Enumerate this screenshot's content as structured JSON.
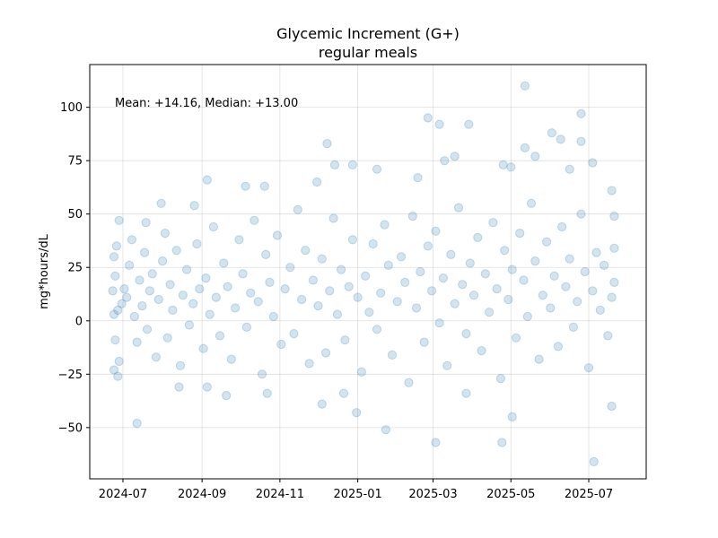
{
  "chart_data": {
    "type": "scatter",
    "title": "Glycemic Increment (G+)",
    "subtitle": "regular meals",
    "xlabel": "",
    "ylabel": "mg*hours/dL",
    "annotation": "Mean: +14.16, Median: +13.00",
    "x_axis_type": "date",
    "xlim": [
      "2024-06-05",
      "2025-08-15"
    ],
    "ylim": [
      -74,
      120
    ],
    "x_ticks": [
      "2024-07-01",
      "2024-09-01",
      "2024-11-01",
      "2025-01-01",
      "2025-03-01",
      "2025-05-01",
      "2025-07-01"
    ],
    "x_tick_labels": [
      "2024-07",
      "2024-09",
      "2024-11",
      "2025-01",
      "2025-03",
      "2025-05",
      "2025-07"
    ],
    "y_ticks": [
      -50,
      -25,
      0,
      25,
      50,
      75,
      100
    ],
    "y_tick_labels": [
      "−50",
      "−25",
      "0",
      "25",
      "50",
      "75",
      "100"
    ],
    "grid": true,
    "point_color": "#1f77b4",
    "point_alpha": 0.2,
    "legend": "none",
    "series": [
      {
        "name": "",
        "points": [
          {
            "x": "2024-06-27",
            "y": -26
          },
          {
            "x": "2024-06-24",
            "y": -23
          },
          {
            "x": "2024-06-28",
            "y": 47
          },
          {
            "x": "2024-07-12",
            "y": -48
          },
          {
            "x": "2024-07-19",
            "y": 46
          },
          {
            "x": "2024-07-31",
            "y": 55
          },
          {
            "x": "2024-08-14",
            "y": -31
          },
          {
            "x": "2024-08-26",
            "y": 54
          },
          {
            "x": "2024-09-05",
            "y": -31
          },
          {
            "x": "2024-09-05",
            "y": 66
          },
          {
            "x": "2024-09-20",
            "y": -35
          },
          {
            "x": "2024-10-05",
            "y": 63
          },
          {
            "x": "2024-10-20",
            "y": 63
          },
          {
            "x": "2024-10-22",
            "y": -34
          },
          {
            "x": "2024-11-30",
            "y": 65
          },
          {
            "x": "2024-12-04",
            "y": -39
          },
          {
            "x": "2024-12-08",
            "y": 83
          },
          {
            "x": "2024-12-14",
            "y": 73
          },
          {
            "x": "2024-12-28",
            "y": 73
          },
          {
            "x": "2024-12-21",
            "y": -34
          },
          {
            "x": "2024-12-31",
            "y": -43
          },
          {
            "x": "2025-01-16",
            "y": 71
          },
          {
            "x": "2025-01-23",
            "y": -51
          },
          {
            "x": "2025-02-17",
            "y": 67
          },
          {
            "x": "2025-02-25",
            "y": 95
          },
          {
            "x": "2025-03-06",
            "y": 92
          },
          {
            "x": "2025-03-03",
            "y": -57
          },
          {
            "x": "2025-03-10",
            "y": 75
          },
          {
            "x": "2025-03-18",
            "y": 77
          },
          {
            "x": "2025-03-29",
            "y": 92
          },
          {
            "x": "2025-03-27",
            "y": -34
          },
          {
            "x": "2025-04-25",
            "y": 73
          },
          {
            "x": "2025-04-24",
            "y": -57
          },
          {
            "x": "2025-05-01",
            "y": 72
          },
          {
            "x": "2025-05-02",
            "y": -45
          },
          {
            "x": "2025-05-12",
            "y": 110
          },
          {
            "x": "2025-05-12",
            "y": 81
          },
          {
            "x": "2025-05-20",
            "y": 77
          },
          {
            "x": "2025-06-02",
            "y": 88
          },
          {
            "x": "2025-06-09",
            "y": 85
          },
          {
            "x": "2025-06-16",
            "y": 71
          },
          {
            "x": "2025-06-25",
            "y": 97
          },
          {
            "x": "2025-06-25",
            "y": 84
          },
          {
            "x": "2025-07-04",
            "y": 74
          },
          {
            "x": "2025-07-05",
            "y": -66
          },
          {
            "x": "2025-07-19",
            "y": -40
          },
          {
            "x": "2025-07-19",
            "y": 61
          },
          {
            "x": "2025-07-21",
            "y": 49
          },
          {
            "x": "2024-06-26",
            "y": 35
          },
          {
            "x": "2024-06-24",
            "y": 30
          },
          {
            "x": "2024-06-25",
            "y": 21
          },
          {
            "x": "2024-06-23",
            "y": 14
          },
          {
            "x": "2024-06-27",
            "y": 5
          },
          {
            "x": "2024-06-24",
            "y": 3
          },
          {
            "x": "2024-06-25",
            "y": -9
          },
          {
            "x": "2024-06-28",
            "y": -19
          },
          {
            "x": "2024-06-30",
            "y": 8
          },
          {
            "x": "2024-07-02",
            "y": 15
          },
          {
            "x": "2024-07-04",
            "y": 11
          },
          {
            "x": "2024-07-06",
            "y": 26
          },
          {
            "x": "2024-07-08",
            "y": 38
          },
          {
            "x": "2024-07-10",
            "y": 2
          },
          {
            "x": "2024-07-12",
            "y": -10
          },
          {
            "x": "2024-07-14",
            "y": 19
          },
          {
            "x": "2024-07-16",
            "y": 7
          },
          {
            "x": "2024-07-18",
            "y": 32
          },
          {
            "x": "2024-07-20",
            "y": -4
          },
          {
            "x": "2024-07-22",
            "y": 14
          },
          {
            "x": "2024-07-24",
            "y": 22
          },
          {
            "x": "2024-07-27",
            "y": -17
          },
          {
            "x": "2024-07-29",
            "y": 10
          },
          {
            "x": "2024-08-01",
            "y": 28
          },
          {
            "x": "2024-08-03",
            "y": 41
          },
          {
            "x": "2024-08-05",
            "y": -8
          },
          {
            "x": "2024-08-07",
            "y": 17
          },
          {
            "x": "2024-08-09",
            "y": 5
          },
          {
            "x": "2024-08-12",
            "y": 33
          },
          {
            "x": "2024-08-15",
            "y": -21
          },
          {
            "x": "2024-08-17",
            "y": 12
          },
          {
            "x": "2024-08-20",
            "y": 24
          },
          {
            "x": "2024-08-22",
            "y": -2
          },
          {
            "x": "2024-08-25",
            "y": 8
          },
          {
            "x": "2024-08-28",
            "y": 36
          },
          {
            "x": "2024-08-30",
            "y": 15
          },
          {
            "x": "2024-09-02",
            "y": -13
          },
          {
            "x": "2024-09-04",
            "y": 20
          },
          {
            "x": "2024-09-07",
            "y": 3
          },
          {
            "x": "2024-09-10",
            "y": 44
          },
          {
            "x": "2024-09-12",
            "y": 11
          },
          {
            "x": "2024-09-15",
            "y": -7
          },
          {
            "x": "2024-09-18",
            "y": 27
          },
          {
            "x": "2024-09-21",
            "y": 16
          },
          {
            "x": "2024-09-24",
            "y": -18
          },
          {
            "x": "2024-09-27",
            "y": 6
          },
          {
            "x": "2024-09-30",
            "y": 38
          },
          {
            "x": "2024-10-03",
            "y": 22
          },
          {
            "x": "2024-10-06",
            "y": -3
          },
          {
            "x": "2024-10-09",
            "y": 13
          },
          {
            "x": "2024-10-12",
            "y": 47
          },
          {
            "x": "2024-10-15",
            "y": 9
          },
          {
            "x": "2024-10-18",
            "y": -25
          },
          {
            "x": "2024-10-21",
            "y": 31
          },
          {
            "x": "2024-10-24",
            "y": 18
          },
          {
            "x": "2024-10-27",
            "y": 2
          },
          {
            "x": "2024-10-30",
            "y": 40
          },
          {
            "x": "2024-11-02",
            "y": -11
          },
          {
            "x": "2024-11-05",
            "y": 15
          },
          {
            "x": "2024-11-09",
            "y": 25
          },
          {
            "x": "2024-11-12",
            "y": -6
          },
          {
            "x": "2024-11-15",
            "y": 52
          },
          {
            "x": "2024-11-18",
            "y": 10
          },
          {
            "x": "2024-11-21",
            "y": 33
          },
          {
            "x": "2024-11-24",
            "y": -20
          },
          {
            "x": "2024-11-27",
            "y": 19
          },
          {
            "x": "2024-12-01",
            "y": 7
          },
          {
            "x": "2024-12-04",
            "y": 29
          },
          {
            "x": "2024-12-07",
            "y": -15
          },
          {
            "x": "2024-12-10",
            "y": 14
          },
          {
            "x": "2024-12-13",
            "y": 48
          },
          {
            "x": "2024-12-16",
            "y": 3
          },
          {
            "x": "2024-12-19",
            "y": 24
          },
          {
            "x": "2024-12-22",
            "y": -9
          },
          {
            "x": "2024-12-25",
            "y": 16
          },
          {
            "x": "2024-12-28",
            "y": 38
          },
          {
            "x": "2025-01-01",
            "y": 11
          },
          {
            "x": "2025-01-04",
            "y": -24
          },
          {
            "x": "2025-01-07",
            "y": 21
          },
          {
            "x": "2025-01-10",
            "y": 4
          },
          {
            "x": "2025-01-13",
            "y": 36
          },
          {
            "x": "2025-01-16",
            "y": -4
          },
          {
            "x": "2025-01-19",
            "y": 13
          },
          {
            "x": "2025-01-22",
            "y": 45
          },
          {
            "x": "2025-01-25",
            "y": 26
          },
          {
            "x": "2025-01-28",
            "y": -16
          },
          {
            "x": "2025-02-01",
            "y": 9
          },
          {
            "x": "2025-02-04",
            "y": 30
          },
          {
            "x": "2025-02-07",
            "y": 18
          },
          {
            "x": "2025-02-10",
            "y": -29
          },
          {
            "x": "2025-02-13",
            "y": 49
          },
          {
            "x": "2025-02-16",
            "y": 6
          },
          {
            "x": "2025-02-19",
            "y": 23
          },
          {
            "x": "2025-02-22",
            "y": -10
          },
          {
            "x": "2025-02-25",
            "y": 35
          },
          {
            "x": "2025-02-28",
            "y": 14
          },
          {
            "x": "2025-03-03",
            "y": 42
          },
          {
            "x": "2025-03-06",
            "y": -1
          },
          {
            "x": "2025-03-09",
            "y": 20
          },
          {
            "x": "2025-03-12",
            "y": -21
          },
          {
            "x": "2025-03-15",
            "y": 31
          },
          {
            "x": "2025-03-18",
            "y": 8
          },
          {
            "x": "2025-03-21",
            "y": 53
          },
          {
            "x": "2025-03-24",
            "y": 17
          },
          {
            "x": "2025-03-27",
            "y": -6
          },
          {
            "x": "2025-03-30",
            "y": 27
          },
          {
            "x": "2025-04-02",
            "y": 12
          },
          {
            "x": "2025-04-05",
            "y": 39
          },
          {
            "x": "2025-04-08",
            "y": -14
          },
          {
            "x": "2025-04-11",
            "y": 22
          },
          {
            "x": "2025-04-14",
            "y": 4
          },
          {
            "x": "2025-04-17",
            "y": 46
          },
          {
            "x": "2025-04-20",
            "y": 15
          },
          {
            "x": "2025-04-23",
            "y": -27
          },
          {
            "x": "2025-04-26",
            "y": 33
          },
          {
            "x": "2025-04-29",
            "y": 10
          },
          {
            "x": "2025-05-02",
            "y": 24
          },
          {
            "x": "2025-05-05",
            "y": -8
          },
          {
            "x": "2025-05-08",
            "y": 41
          },
          {
            "x": "2025-05-11",
            "y": 19
          },
          {
            "x": "2025-05-14",
            "y": 2
          },
          {
            "x": "2025-05-17",
            "y": 55
          },
          {
            "x": "2025-05-20",
            "y": 28
          },
          {
            "x": "2025-05-23",
            "y": -18
          },
          {
            "x": "2025-05-26",
            "y": 12
          },
          {
            "x": "2025-05-29",
            "y": 37
          },
          {
            "x": "2025-06-01",
            "y": 6
          },
          {
            "x": "2025-06-04",
            "y": 21
          },
          {
            "x": "2025-06-07",
            "y": -12
          },
          {
            "x": "2025-06-10",
            "y": 44
          },
          {
            "x": "2025-06-13",
            "y": 16
          },
          {
            "x": "2025-06-16",
            "y": 29
          },
          {
            "x": "2025-06-19",
            "y": -3
          },
          {
            "x": "2025-06-22",
            "y": 9
          },
          {
            "x": "2025-06-25",
            "y": 50
          },
          {
            "x": "2025-06-28",
            "y": 23
          },
          {
            "x": "2025-07-01",
            "y": -22
          },
          {
            "x": "2025-07-04",
            "y": 14
          },
          {
            "x": "2025-07-07",
            "y": 32
          },
          {
            "x": "2025-07-10",
            "y": 5
          },
          {
            "x": "2025-07-13",
            "y": 26
          },
          {
            "x": "2025-07-16",
            "y": -7
          },
          {
            "x": "2025-07-19",
            "y": 11
          },
          {
            "x": "2025-07-21",
            "y": 18
          },
          {
            "x": "2025-07-21",
            "y": 34
          }
        ]
      }
    ]
  }
}
